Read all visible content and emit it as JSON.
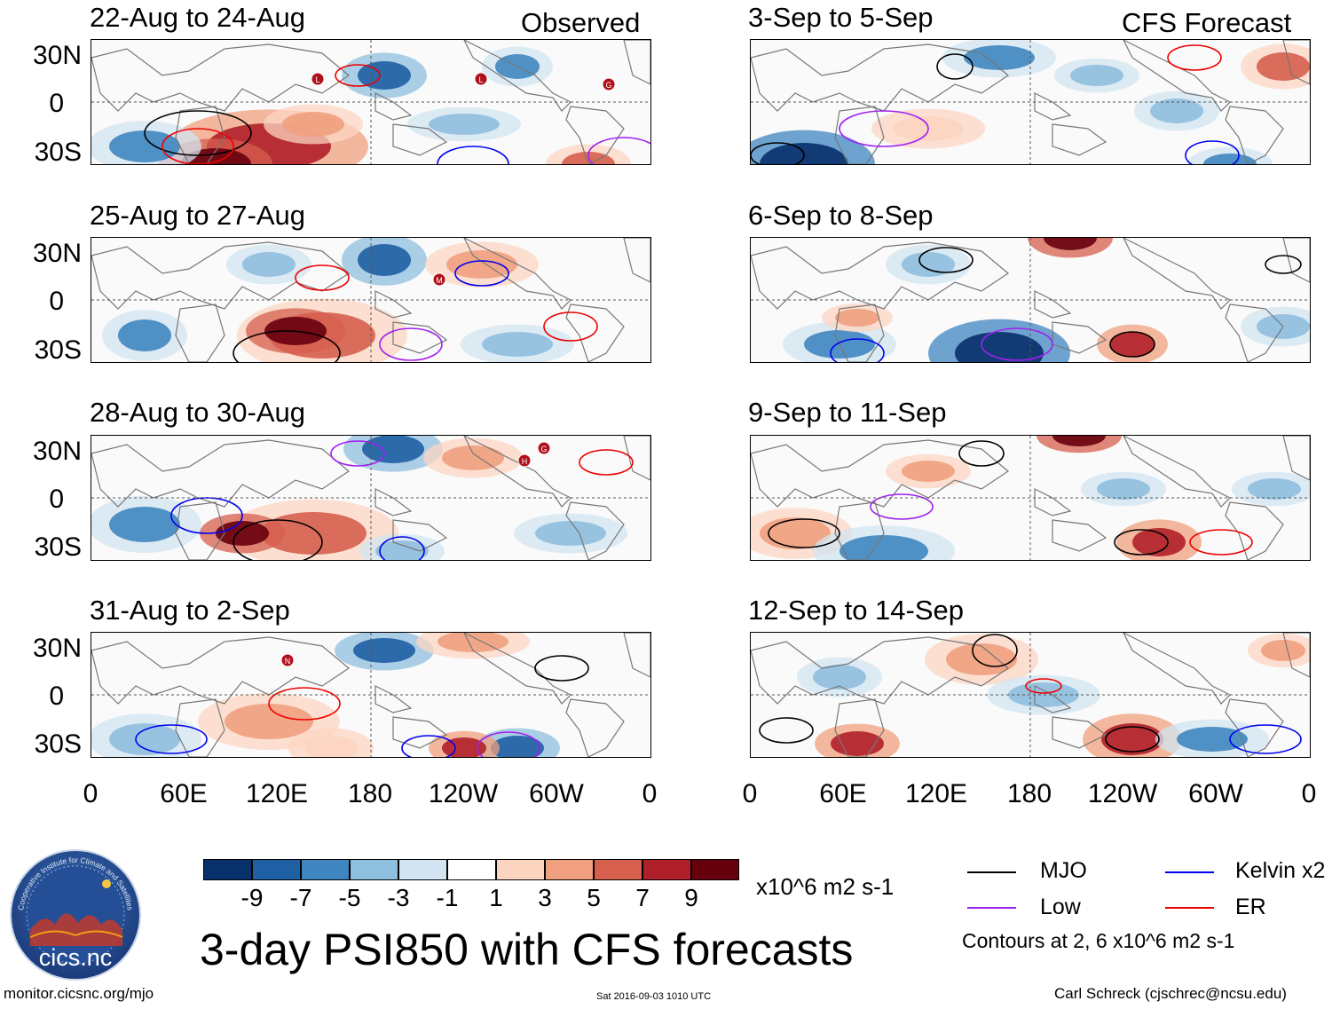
{
  "figure_title": "3-day PSI850 with CFS forecasts",
  "columns": {
    "left_title": "Observed",
    "right_title": "CFS Forecast"
  },
  "lat_labels": [
    "30N",
    "0",
    "30S"
  ],
  "lon_labels": [
    "0",
    "60E",
    "120E",
    "180",
    "120W",
    "60W",
    "0"
  ],
  "panels": {
    "observed": [
      "22-Aug to 24-Aug",
      "25-Aug to 27-Aug",
      "28-Aug to 30-Aug",
      "31-Aug to 2-Sep"
    ],
    "forecast": [
      "3-Sep to 5-Sep",
      "6-Sep to 8-Sep",
      "9-Sep to 11-Sep",
      "12-Sep to 14-Sep"
    ]
  },
  "storm_markers": [
    "L",
    "L",
    "G",
    "M",
    "H",
    "G",
    "N"
  ],
  "colorbar": {
    "labels": [
      "-9",
      "-7",
      "-5",
      "-3",
      "-1",
      "1",
      "3",
      "5",
      "7",
      "9"
    ],
    "colors": [
      "#08306b",
      "#1f5fa3",
      "#3f86c0",
      "#8fbfdf",
      "#d2e4f1",
      "#ffffff",
      "#fcd5c1",
      "#f0a07e",
      "#d65f4e",
      "#b0202a",
      "#67000d"
    ],
    "units": "x10^6 m2 s-1"
  },
  "legend": {
    "items": [
      {
        "label": "MJO",
        "color": "#000000"
      },
      {
        "label": "Kelvin x2",
        "color": "#0000ee"
      },
      {
        "label": "Low",
        "color": "#a020f0"
      },
      {
        "label": "ER",
        "color": "#ee0000"
      }
    ],
    "note": "Contours at 2, 6 x10^6 m2 s-1"
  },
  "logo_text": "cics.nc",
  "logo_ring_text": "Cooperative Institute for Climate and Satellites",
  "footer": {
    "url": "monitor.cicsnc.org/mjo",
    "timestamp": "Sat 2016-09-03 1010 UTC",
    "author": "Carl Schreck (cjschrec@ncsu.edu)"
  }
}
